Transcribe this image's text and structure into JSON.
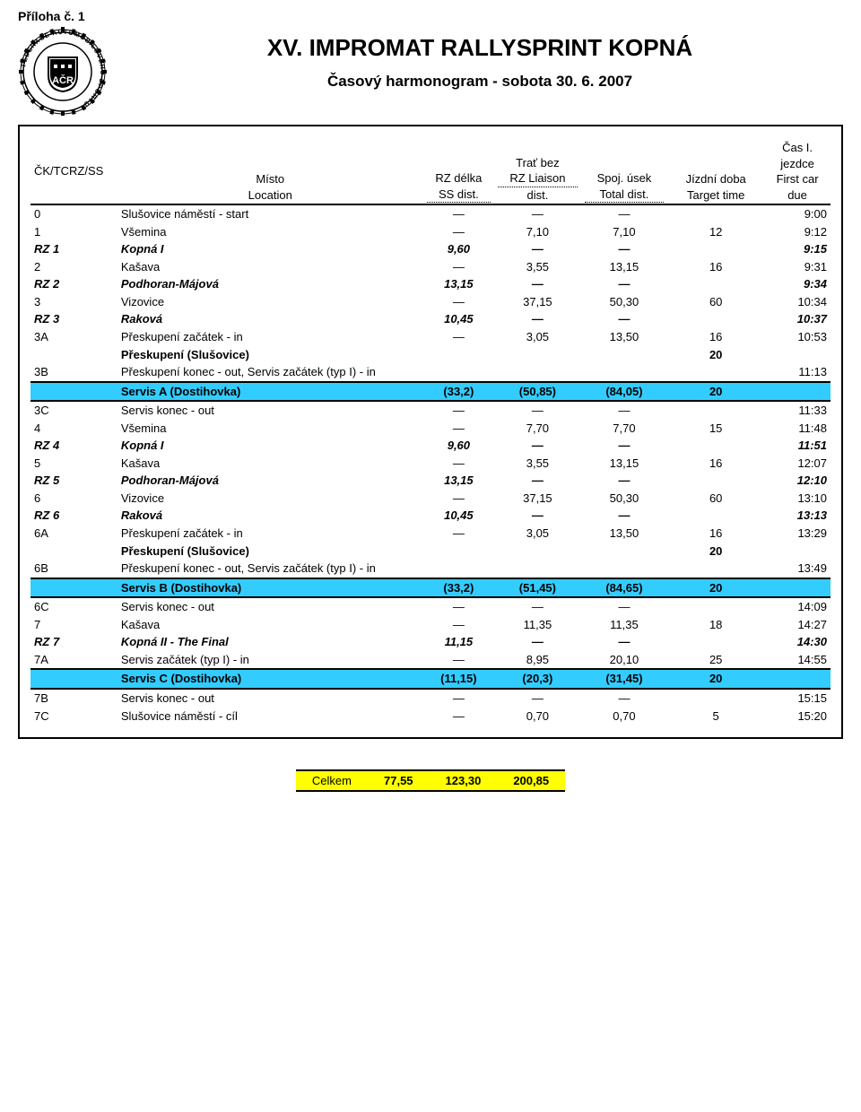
{
  "appendix": "Příloha č. 1",
  "title": "XV. IMPROMAT RALLYSPRINT KOPNÁ",
  "subtitle": "Časový harmonogram - sobota 30. 6. 2007",
  "headers": {
    "code": "ČK/TCRZ/SS",
    "loc1": "Místo",
    "loc2": "Location",
    "rz1": "RZ délka",
    "rz2": "SS dist.",
    "trat1": "Trať bez",
    "trat2": "RZ Liaison",
    "trat3": "dist.",
    "spoj1": "Spoj. úsek",
    "spoj2": "Total dist.",
    "jizd1": "Jízdní doba",
    "jizd2": "Target time",
    "time1": "Čas I.",
    "time2": "jezdce",
    "time3": "First car",
    "time4": "due"
  },
  "rows": [
    {
      "cls": "thick-top",
      "c0": "0",
      "loc": "Slušovice náměstí - start",
      "rz": "—",
      "trat": "—",
      "spoj": "—",
      "jizd": "",
      "time": "9:00"
    },
    {
      "c0": "1",
      "loc": "Všemina",
      "rz": "—",
      "trat": "7,10",
      "spoj": "7,10",
      "jizd": "12",
      "time": "9:12"
    },
    {
      "rzrow": true,
      "c0": "RZ 1",
      "loc": "Kopná I",
      "rz": "9,60",
      "trat": "—",
      "spoj": "—",
      "jizd": "",
      "time": "9:15"
    },
    {
      "c0": "2",
      "loc": "Kašava",
      "rz": "—",
      "trat": "3,55",
      "spoj": "13,15",
      "jizd": "16",
      "time": "9:31"
    },
    {
      "rzrow": true,
      "c0": "RZ 2",
      "loc": "Podhoran-Májová",
      "rz": "13,15",
      "trat": "—",
      "spoj": "—",
      "jizd": "",
      "time": "9:34"
    },
    {
      "c0": "3",
      "loc": "Vizovice",
      "rz": "—",
      "trat": "37,15",
      "spoj": "50,30",
      "jizd": "60",
      "time": "10:34"
    },
    {
      "rzrow": true,
      "c0": "RZ 3",
      "loc": "Raková",
      "rz": "10,45",
      "trat": "—",
      "spoj": "—",
      "jizd": "",
      "time": "10:37"
    },
    {
      "c0": "3A",
      "loc": "Přeskupení začátek - in",
      "rz": "—",
      "trat": "3,05",
      "spoj": "13,50",
      "jizd": "16",
      "time": "10:53"
    },
    {
      "presk": true,
      "c0": "",
      "loc": "Přeskupení (Slušovice)",
      "rz": "",
      "trat": "",
      "spoj": "",
      "jizd": "20",
      "time": ""
    },
    {
      "c0": "3B",
      "loc": "Přeskupení konec - out, Servis začátek (typ I) - in",
      "rz": "",
      "trat": "",
      "spoj": "",
      "jizd": "",
      "time": "11:13",
      "span": true
    },
    {
      "serv": true,
      "cls": "thick-top bg-cyan",
      "c0": "",
      "loc": "Servis A (Dostihovka)",
      "rz": "(33,2)",
      "trat": "(50,85)",
      "spoj": "(84,05)",
      "jizd": "20",
      "time": ""
    },
    {
      "cls": "thick-top",
      "c0": "3C",
      "loc": "Servis konec - out",
      "rz": "—",
      "trat": "—",
      "spoj": "—",
      "jizd": "",
      "time": "11:33"
    },
    {
      "c0": "4",
      "loc": "Všemina",
      "rz": "—",
      "trat": "7,70",
      "spoj": "7,70",
      "jizd": "15",
      "time": "11:48"
    },
    {
      "rzrow": true,
      "c0": "RZ 4",
      "loc": "Kopná I",
      "rz": "9,60",
      "trat": "—",
      "spoj": "—",
      "jizd": "",
      "time": "11:51"
    },
    {
      "c0": "5",
      "loc": "Kašava",
      "rz": "—",
      "trat": "3,55",
      "spoj": "13,15",
      "jizd": "16",
      "time": "12:07"
    },
    {
      "rzrow": true,
      "c0": "RZ 5",
      "loc": "Podhoran-Májová",
      "rz": "13,15",
      "trat": "—",
      "spoj": "—",
      "jizd": "",
      "time": "12:10"
    },
    {
      "c0": "6",
      "loc": "Vizovice",
      "rz": "—",
      "trat": "37,15",
      "spoj": "50,30",
      "jizd": "60",
      "time": "13:10"
    },
    {
      "rzrow": true,
      "c0": "RZ 6",
      "loc": "Raková",
      "rz": "10,45",
      "trat": "—",
      "spoj": "—",
      "jizd": "",
      "time": "13:13"
    },
    {
      "c0": "6A",
      "loc": "Přeskupení začátek - in",
      "rz": "—",
      "trat": "3,05",
      "spoj": "13,50",
      "jizd": "16",
      "time": "13:29"
    },
    {
      "presk": true,
      "c0": "",
      "loc": "Přeskupení (Slušovice)",
      "rz": "",
      "trat": "",
      "spoj": "",
      "jizd": "20",
      "time": ""
    },
    {
      "c0": "6B",
      "loc": "Přeskupení konec - out, Servis začátek (typ I) - in",
      "rz": "",
      "trat": "",
      "spoj": "",
      "jizd": "",
      "time": "13:49",
      "span": true
    },
    {
      "serv": true,
      "cls": "thick-top bg-cyan",
      "c0": "",
      "loc": "Servis B (Dostihovka)",
      "rz": "(33,2)",
      "trat": "(51,45)",
      "spoj": "(84,65)",
      "jizd": "20",
      "time": ""
    },
    {
      "cls": "thick-top",
      "c0": "6C",
      "loc": "Servis konec - out",
      "rz": "—",
      "trat": "—",
      "spoj": "—",
      "jizd": "",
      "time": "14:09"
    },
    {
      "c0": "7",
      "loc": "Kašava",
      "rz": "—",
      "trat": "11,35",
      "spoj": "11,35",
      "jizd": "18",
      "time": "14:27"
    },
    {
      "rzrow": true,
      "c0": "RZ 7",
      "loc": "Kopná II - The Final",
      "rz": "11,15",
      "trat": "—",
      "spoj": "—",
      "jizd": "",
      "time": "14:30"
    },
    {
      "c0": "7A",
      "loc": "Servis začátek (typ I) - in",
      "rz": "—",
      "trat": "8,95",
      "spoj": "20,10",
      "jizd": "25",
      "time": "14:55"
    },
    {
      "serv": true,
      "cls": "thick-top bg-cyan",
      "c0": "",
      "loc": "Servis C (Dostihovka)",
      "rz": "(11,15)",
      "trat": "(20,3)",
      "spoj": "(31,45)",
      "jizd": "20",
      "time": ""
    },
    {
      "cls": "thick-top",
      "c0": "7B",
      "loc": "Servis konec - out",
      "rz": "—",
      "trat": "—",
      "spoj": "—",
      "jizd": "",
      "time": "15:15"
    },
    {
      "c0": "7C",
      "loc": "Slušovice náměstí - cíl",
      "rz": "—",
      "trat": "0,70",
      "spoj": "0,70",
      "jizd": "5",
      "time": "15:20"
    }
  ],
  "total": {
    "label": "Celkem",
    "rz": "77,55",
    "trat": "123,30",
    "spoj": "200,85"
  },
  "logo": {
    "outer_text_color": "#000",
    "inner_bg": "#fff"
  }
}
